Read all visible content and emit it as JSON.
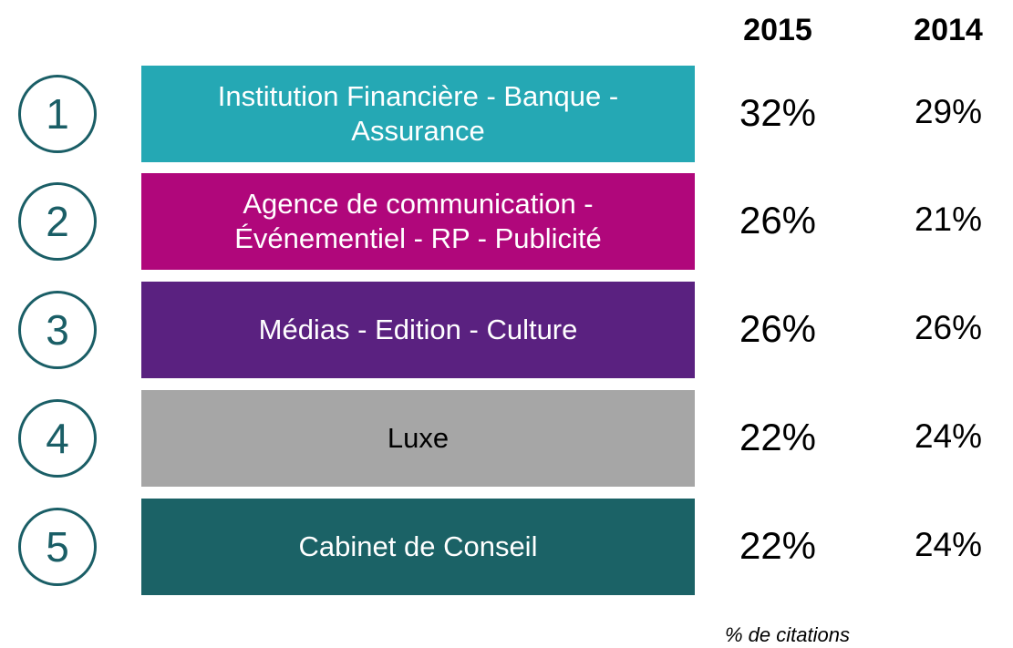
{
  "header": {
    "columns": [
      "2015",
      "2014"
    ]
  },
  "rows": [
    {
      "rank": "1",
      "lines": [
        "Institution Financière - Banque -",
        "Assurance"
      ],
      "color": "#25a8b4",
      "text_color": "#ffffff",
      "values": [
        "32%",
        "29%"
      ]
    },
    {
      "rank": "2",
      "lines": [
        "Agence de communication -",
        "Événementiel - RP - Publicité"
      ],
      "color": "#b0077b",
      "text_color": "#ffffff",
      "values": [
        "26%",
        "21%"
      ]
    },
    {
      "rank": "3",
      "lines": [
        "Médias - Edition - Culture"
      ],
      "color": "#5a2180",
      "text_color": "#ffffff",
      "values": [
        "26%",
        "26%"
      ]
    },
    {
      "rank": "4",
      "lines": [
        "Luxe"
      ],
      "color": "#a6a6a6",
      "text_color": "#000000",
      "values": [
        "22%",
        "24%"
      ]
    },
    {
      "rank": "5",
      "lines": [
        "Cabinet de Conseil"
      ],
      "color": "#1b6266",
      "text_color": "#ffffff",
      "values": [
        "22%",
        "24%"
      ]
    }
  ],
  "footnote": "% de citations"
}
